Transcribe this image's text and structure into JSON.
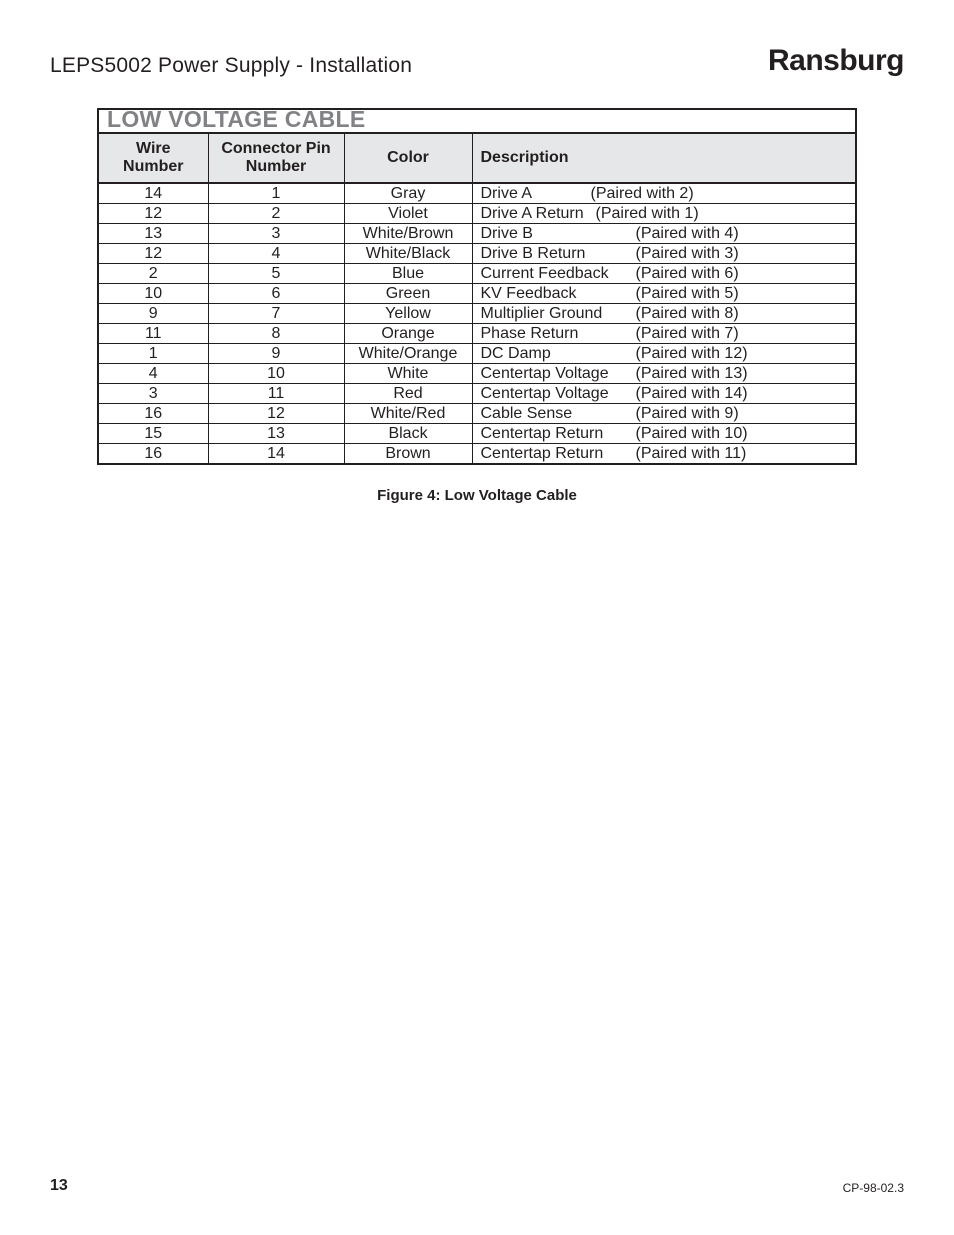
{
  "header": {
    "doc_title": "LEPS5002 Power Supply - Installation",
    "brand": "Ransburg"
  },
  "table": {
    "title": "LOW VOLTAGE CABLE",
    "columns": {
      "wire": "Wire Number",
      "pin": "Connector Pin Number",
      "color": "Color",
      "desc": "Description"
    },
    "col_widths": {
      "wire": 110,
      "pin": 136,
      "color": 128
    },
    "rows": [
      {
        "wire": "14",
        "pin": "1",
        "color": "Gray",
        "desc": "Drive A",
        "paired": "(Paired with 2)",
        "desc_min_w": 110
      },
      {
        "wire": "12",
        "pin": "2",
        "color": "Violet",
        "desc": "Drive A Return",
        "paired": "(Paired with 1)",
        "desc_min_w": 115
      },
      {
        "wire": "13",
        "pin": "3",
        "color": "White/Brown",
        "desc": "Drive B",
        "paired": "(Paired with 4)",
        "desc_min_w": 155
      },
      {
        "wire": "12",
        "pin": "4",
        "color": "White/Black",
        "desc": "Drive B Return",
        "paired": "(Paired with 3)",
        "desc_min_w": 155
      },
      {
        "wire": "2",
        "pin": "5",
        "color": "Blue",
        "desc": "Current Feedback",
        "paired": "(Paired with 6)",
        "desc_min_w": 155
      },
      {
        "wire": "10",
        "pin": "6",
        "color": "Green",
        "desc": "KV Feedback",
        "paired": "(Paired with 5)",
        "desc_min_w": 155
      },
      {
        "wire": "9",
        "pin": "7",
        "color": "Yellow",
        "desc": "Multiplier Ground",
        "paired": "(Paired with 8)",
        "desc_min_w": 155
      },
      {
        "wire": "11",
        "pin": "8",
        "color": "Orange",
        "desc": "Phase Return",
        "paired": "(Paired with 7)",
        "desc_min_w": 155
      },
      {
        "wire": "1",
        "pin": "9",
        "color": "White/Orange",
        "desc": "DC Damp",
        "paired": "(Paired with 12)",
        "desc_min_w": 155
      },
      {
        "wire": "4",
        "pin": "10",
        "color": "White",
        "desc": "Centertap Voltage",
        "paired": "(Paired with 13)",
        "desc_min_w": 155
      },
      {
        "wire": "3",
        "pin": "11",
        "color": "Red",
        "desc": "Centertap Voltage",
        "paired": "(Paired with 14)",
        "desc_min_w": 155
      },
      {
        "wire": "16",
        "pin": "12",
        "color": "White/Red",
        "desc": "Cable Sense",
        "paired": "(Paired with 9)",
        "desc_min_w": 155
      },
      {
        "wire": "15",
        "pin": "13",
        "color": "Black",
        "desc": "Centertap Return",
        "paired": "(Paired with 10)",
        "desc_min_w": 155
      },
      {
        "wire": "16",
        "pin": "14",
        "color": "Brown",
        "desc": "Centertap Return",
        "paired": "(Paired with 11)",
        "desc_min_w": 155
      }
    ],
    "header_bg": "#e6e7e8",
    "border_color": "#231f20",
    "title_color": "#808285"
  },
  "caption": "Figure 4:  Low Voltage Cable",
  "footer": {
    "page": "13",
    "code": "CP-98-02.3"
  }
}
